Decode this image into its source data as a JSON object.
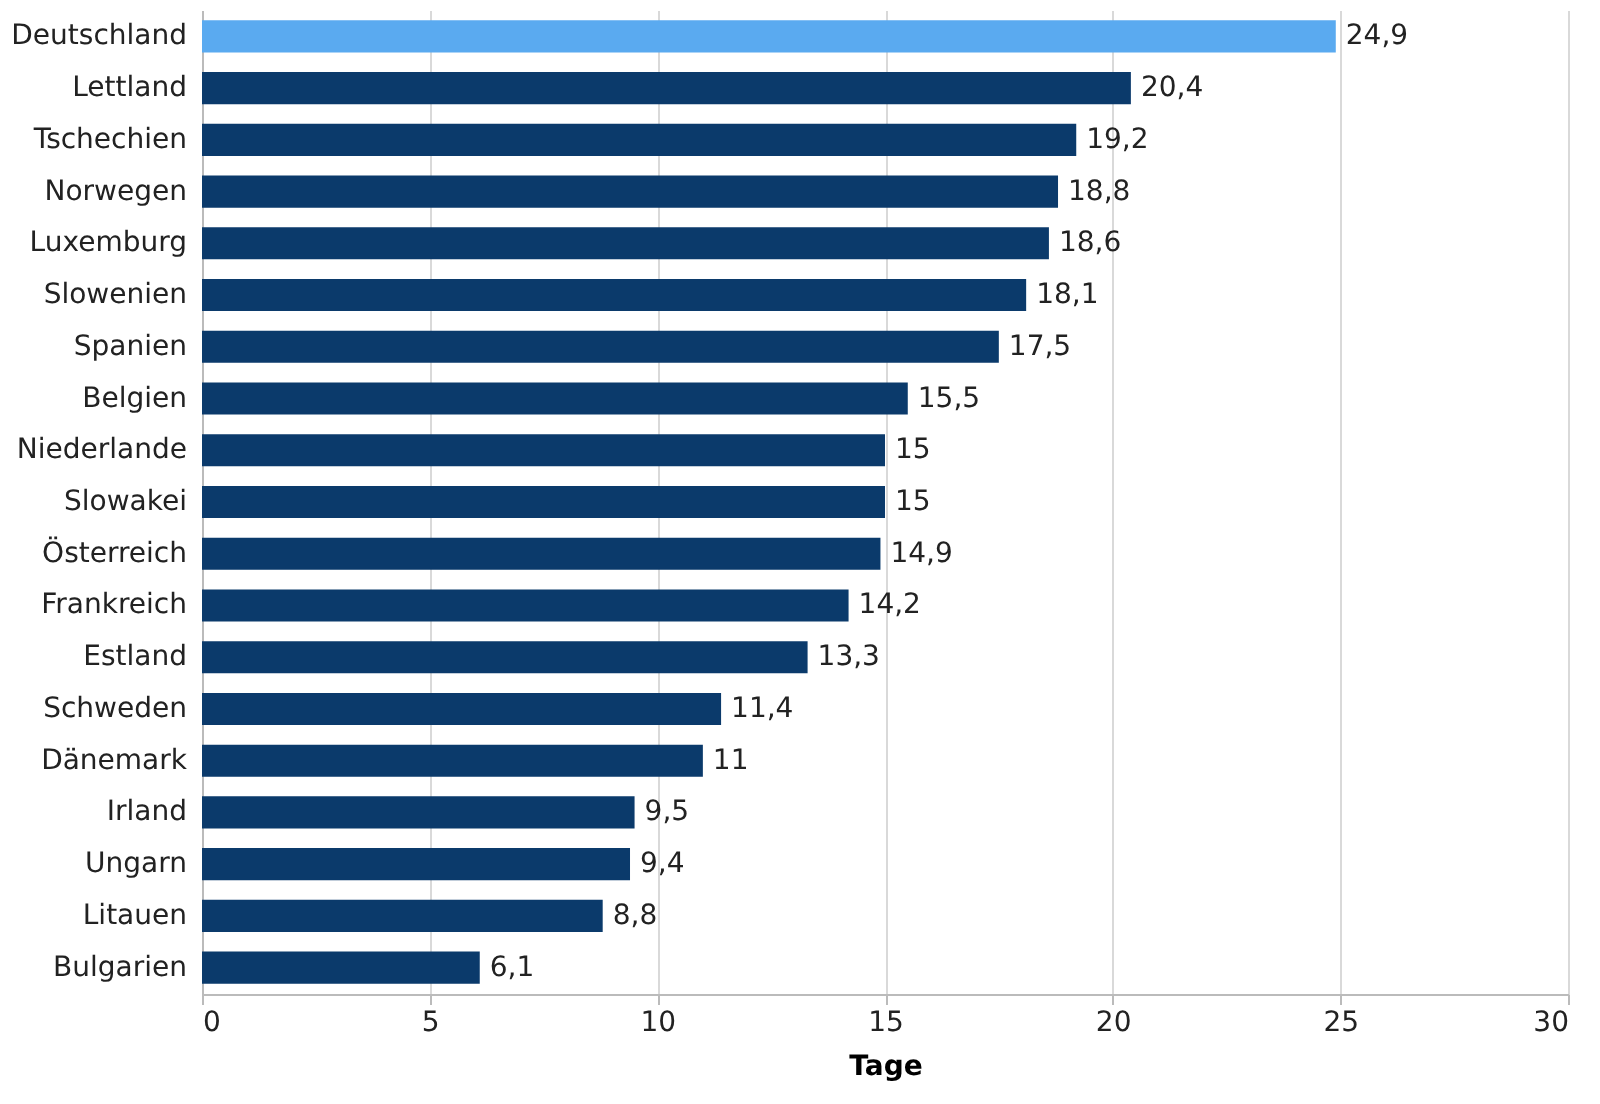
{
  "chart_data": {
    "type": "bar",
    "orientation": "horizontal",
    "xlabel": "Tage",
    "categories": [
      "Deutschland",
      "Lettland",
      "Tschechien",
      "Norwegen",
      "Luxemburg",
      "Slowenien",
      "Spanien",
      "Belgien",
      "Niederlande",
      "Slowakei",
      "Österreich",
      "Frankreich",
      "Estland",
      "Schweden",
      "Dänemark",
      "Irland",
      "Ungarn",
      "Litauen",
      "Bulgarien"
    ],
    "values": [
      24.9,
      20.4,
      19.2,
      18.8,
      18.6,
      18.1,
      17.5,
      15.5,
      15,
      15,
      14.9,
      14.2,
      13.3,
      11.4,
      11,
      9.5,
      9.4,
      8.8,
      6.1
    ],
    "value_labels": [
      "24,9",
      "20,4",
      "19,2",
      "18,8",
      "18,6",
      "18,1",
      "17,5",
      "15,5",
      "15",
      "15",
      "14,9",
      "14,2",
      "13,3",
      "11,4",
      "11",
      "9,5",
      "9,4",
      "8,8",
      "6,1"
    ],
    "colors": [
      "#5aaaf0",
      "#0b3a6b",
      "#0b3a6b",
      "#0b3a6b",
      "#0b3a6b",
      "#0b3a6b",
      "#0b3a6b",
      "#0b3a6b",
      "#0b3a6b",
      "#0b3a6b",
      "#0b3a6b",
      "#0b3a6b",
      "#0b3a6b",
      "#0b3a6b",
      "#0b3a6b",
      "#0b3a6b",
      "#0b3a6b",
      "#0b3a6b",
      "#0b3a6b"
    ],
    "xlim": [
      0,
      30
    ],
    "xticks": [
      0,
      5,
      10,
      15,
      20,
      25,
      30
    ],
    "grid": "x"
  }
}
